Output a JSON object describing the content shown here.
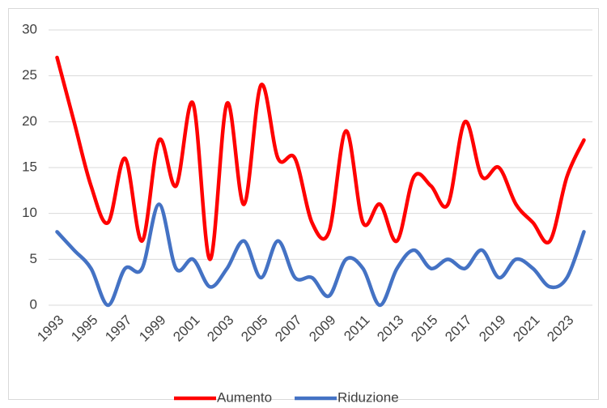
{
  "chart_data": {
    "type": "line",
    "x": [
      1993,
      1994,
      1995,
      1996,
      1997,
      1998,
      1999,
      2000,
      2001,
      2002,
      2003,
      2004,
      2005,
      2006,
      2007,
      2008,
      2009,
      2010,
      2011,
      2012,
      2013,
      2014,
      2015,
      2016,
      2017,
      2018,
      2019,
      2020,
      2021,
      2022,
      2023,
      2024
    ],
    "series": [
      {
        "name": "Aumento",
        "color": "#ff0000",
        "values": [
          27,
          20,
          13,
          9,
          16,
          7,
          18,
          13,
          22,
          5,
          22,
          11,
          24,
          16,
          16,
          9,
          8,
          19,
          9,
          11,
          7,
          14,
          13,
          11,
          20,
          14,
          15,
          11,
          9,
          7,
          14,
          18
        ]
      },
      {
        "name": "Riduzione",
        "color": "#4472c4",
        "values": [
          8,
          6,
          4,
          0,
          4,
          4,
          11,
          4,
          5,
          2,
          4,
          7,
          3,
          7,
          3,
          3,
          1,
          5,
          4,
          0,
          4,
          6,
          4,
          5,
          4,
          6,
          3,
          5,
          4,
          2,
          3,
          8
        ]
      }
    ],
    "xlim": [
      1992.5,
      2024.5
    ],
    "xticks": [
      1993,
      1995,
      1997,
      1999,
      2001,
      2003,
      2005,
      2007,
      2009,
      2011,
      2013,
      2015,
      2017,
      2019,
      2021,
      2023
    ],
    "ylim": [
      0,
      30
    ],
    "yticks": [
      0,
      5,
      10,
      15,
      20,
      25,
      30
    ],
    "grid": true,
    "legend": "bottom"
  }
}
